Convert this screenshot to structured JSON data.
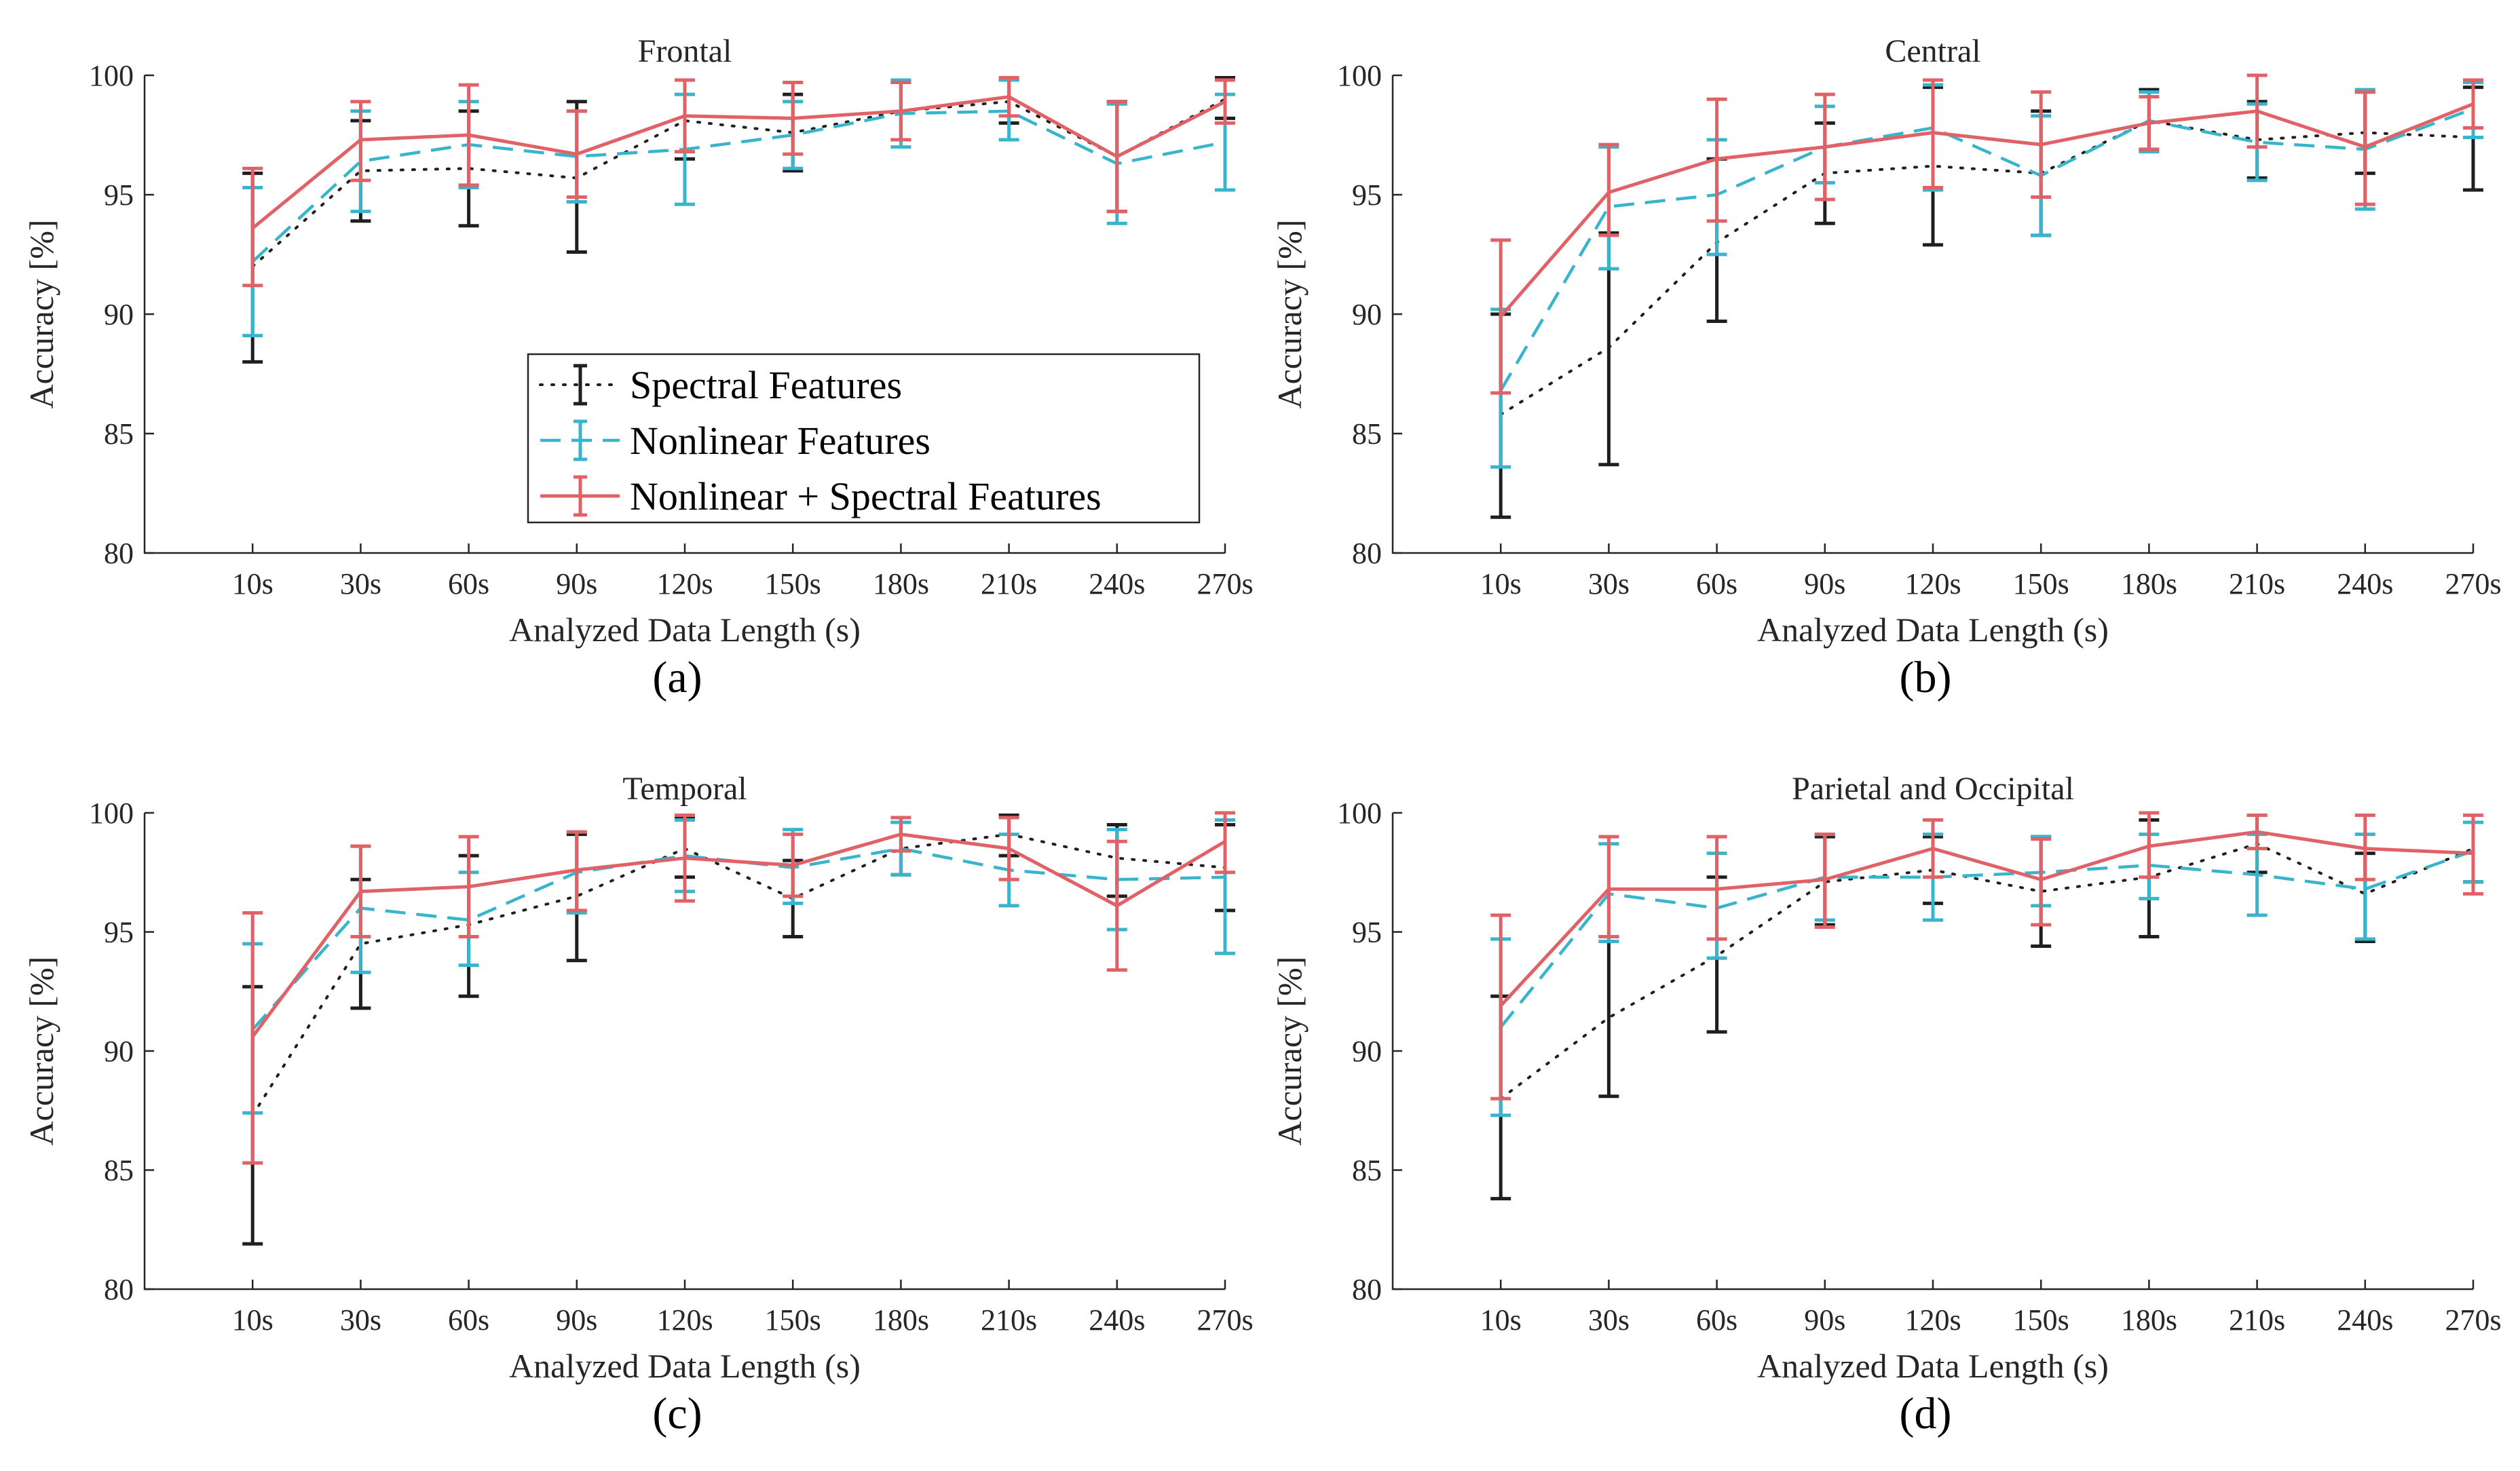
{
  "chart_data": [
    {
      "type": "line",
      "panel_label": "(a)",
      "title": "Frontal",
      "xlabel": "Analyzed Data Length (s)",
      "ylabel": "Accuracy [%]",
      "ylim": [
        80,
        100
      ],
      "yticks": [
        "80",
        "85",
        "90",
        "95",
        "100"
      ],
      "categories": [
        "10s",
        "30s",
        "60s",
        "90s",
        "120s",
        "150s",
        "180s",
        "210s",
        "240s",
        "270s"
      ],
      "series": [
        {
          "name": "Spectral Features",
          "values": [
            92.0,
            96.0,
            96.1,
            95.7,
            98.1,
            97.6,
            98.5,
            98.9,
            96.6,
            99.0
          ],
          "low": [
            88.0,
            93.9,
            93.7,
            92.6,
            96.5,
            96.0,
            97.3,
            98.0,
            94.3,
            98.2
          ],
          "high": [
            95.9,
            98.1,
            98.5,
            98.9,
            99.8,
            99.2,
            99.7,
            99.8,
            98.9,
            99.9
          ]
        },
        {
          "name": "Nonlinear Features",
          "values": [
            92.2,
            96.4,
            97.1,
            96.6,
            96.9,
            97.5,
            98.4,
            98.5,
            96.3,
            97.2
          ],
          "low": [
            89.1,
            94.3,
            95.3,
            94.7,
            94.6,
            96.1,
            97.0,
            97.3,
            93.8,
            95.2
          ],
          "high": [
            95.3,
            98.5,
            98.9,
            98.5,
            99.2,
            98.9,
            99.8,
            99.8,
            98.8,
            99.2
          ]
        },
        {
          "name": "Nonlinear + Spectral Features",
          "values": [
            93.6,
            97.3,
            97.5,
            96.7,
            98.3,
            98.2,
            98.5,
            99.1,
            96.6,
            98.9
          ],
          "low": [
            91.2,
            95.6,
            95.4,
            94.9,
            96.8,
            96.7,
            97.3,
            98.3,
            94.3,
            98.0
          ],
          "high": [
            96.1,
            98.9,
            99.6,
            98.5,
            99.8,
            99.7,
            99.7,
            99.9,
            98.9,
            99.8
          ]
        }
      ],
      "legend": "inside"
    },
    {
      "type": "line",
      "panel_label": "(b)",
      "title": "Central",
      "xlabel": "Analyzed Data Length (s)",
      "ylabel": "Accuracy [%]",
      "ylim": [
        80,
        100
      ],
      "yticks": [
        "80",
        "85",
        "90",
        "95",
        "100"
      ],
      "categories": [
        "10s",
        "30s",
        "60s",
        "90s",
        "120s",
        "150s",
        "180s",
        "210s",
        "240s",
        "270s"
      ],
      "series": [
        {
          "name": "Spectral Features",
          "values": [
            85.8,
            88.6,
            93.0,
            95.9,
            96.2,
            95.9,
            98.1,
            97.3,
            97.6,
            97.4
          ],
          "low": [
            81.5,
            83.7,
            89.7,
            93.8,
            92.9,
            93.3,
            96.9,
            95.7,
            95.9,
            95.2
          ],
          "high": [
            90.0,
            93.4,
            96.5,
            98.0,
            99.5,
            98.5,
            99.4,
            98.9,
            99.3,
            99.5
          ]
        },
        {
          "name": "Nonlinear Features",
          "values": [
            86.8,
            94.5,
            95.0,
            97.0,
            97.8,
            95.8,
            98.1,
            97.2,
            96.9,
            98.6
          ],
          "low": [
            83.6,
            91.9,
            92.5,
            95.5,
            95.2,
            93.3,
            96.8,
            95.6,
            94.4,
            97.4
          ],
          "high": [
            90.2,
            97.0,
            97.3,
            98.7,
            99.6,
            98.3,
            99.3,
            98.8,
            99.4,
            99.7
          ]
        },
        {
          "name": "Nonlinear + Spectral Features",
          "values": [
            89.9,
            95.1,
            96.5,
            97.0,
            97.6,
            97.1,
            98.0,
            98.5,
            97.0,
            98.8
          ],
          "low": [
            86.7,
            93.3,
            93.9,
            94.8,
            95.3,
            94.9,
            96.9,
            97.0,
            94.6,
            97.8
          ],
          "high": [
            93.1,
            97.1,
            99.0,
            99.2,
            99.8,
            99.3,
            99.1,
            100.0,
            99.3,
            99.8
          ]
        }
      ],
      "legend": "none"
    },
    {
      "type": "line",
      "panel_label": "(c)",
      "title": "Temporal",
      "xlabel": "Analyzed Data Length (s)",
      "ylabel": "Accuracy [%]",
      "ylim": [
        80,
        100
      ],
      "yticks": [
        "80",
        "85",
        "90",
        "95",
        "100"
      ],
      "categories": [
        "10s",
        "30s",
        "60s",
        "90s",
        "120s",
        "150s",
        "180s",
        "210s",
        "240s",
        "270s"
      ],
      "series": [
        {
          "name": "Spectral Features",
          "values": [
            87.3,
            94.5,
            95.3,
            96.5,
            98.5,
            96.4,
            98.5,
            99.1,
            98.1,
            97.7
          ],
          "low": [
            81.9,
            91.8,
            92.3,
            93.8,
            97.3,
            94.8,
            97.4,
            98.2,
            96.5,
            95.9
          ],
          "high": [
            92.7,
            97.2,
            98.2,
            99.1,
            99.8,
            98.0,
            99.6,
            99.9,
            99.5,
            99.5
          ]
        },
        {
          "name": "Nonlinear Features",
          "values": [
            90.9,
            96.0,
            95.5,
            97.5,
            98.2,
            97.7,
            98.5,
            97.6,
            97.2,
            97.3
          ],
          "low": [
            87.4,
            93.3,
            93.6,
            95.8,
            96.7,
            96.2,
            97.4,
            96.1,
            95.1,
            94.1
          ],
          "high": [
            94.5,
            98.6,
            97.5,
            99.2,
            99.7,
            99.3,
            99.6,
            99.1,
            99.3,
            99.7
          ]
        },
        {
          "name": "Nonlinear + Spectral Features",
          "values": [
            90.6,
            96.7,
            96.9,
            97.6,
            98.1,
            97.8,
            99.1,
            98.5,
            96.1,
            98.8
          ],
          "low": [
            85.3,
            94.8,
            94.8,
            95.9,
            96.3,
            96.5,
            98.4,
            97.2,
            93.4,
            97.5
          ],
          "high": [
            95.8,
            98.6,
            99.0,
            99.2,
            99.9,
            99.1,
            99.8,
            99.8,
            98.8,
            100.0
          ]
        }
      ],
      "legend": "none"
    },
    {
      "type": "line",
      "panel_label": "(d)",
      "title": "Parietal and Occipital",
      "xlabel": "Analyzed Data Length (s)",
      "ylabel": "Accuracy [%]",
      "ylim": [
        80,
        100
      ],
      "yticks": [
        "80",
        "85",
        "90",
        "95",
        "100"
      ],
      "categories": [
        "10s",
        "30s",
        "60s",
        "90s",
        "120s",
        "150s",
        "180s",
        "210s",
        "240s",
        "270s"
      ],
      "series": [
        {
          "name": "Spectral Features",
          "values": [
            88.0,
            91.4,
            94.0,
            97.1,
            97.6,
            96.7,
            97.3,
            98.7,
            96.6,
            98.5
          ],
          "low": [
            83.8,
            88.1,
            90.8,
            95.3,
            96.2,
            94.4,
            94.8,
            97.5,
            94.6,
            97.1
          ],
          "high": [
            92.3,
            94.8,
            97.3,
            99.0,
            99.0,
            99.0,
            99.7,
            99.9,
            98.3,
            99.6
          ]
        },
        {
          "name": "Nonlinear Features",
          "values": [
            91.0,
            96.6,
            96.0,
            97.3,
            97.3,
            97.5,
            97.8,
            97.4,
            96.8,
            98.4
          ],
          "low": [
            87.3,
            94.6,
            93.9,
            95.5,
            95.5,
            96.1,
            96.4,
            95.7,
            94.7,
            97.1
          ],
          "high": [
            94.7,
            98.7,
            98.3,
            99.1,
            99.1,
            99.0,
            99.1,
            99.1,
            99.1,
            99.6
          ]
        },
        {
          "name": "Nonlinear + Spectral Features",
          "values": [
            91.9,
            96.8,
            96.8,
            97.2,
            98.5,
            97.2,
            98.6,
            99.2,
            98.5,
            98.3
          ],
          "low": [
            88.0,
            94.8,
            94.7,
            95.2,
            97.3,
            95.3,
            97.3,
            98.5,
            97.2,
            96.6
          ],
          "high": [
            95.7,
            99.0,
            99.0,
            99.1,
            99.7,
            98.9,
            100.0,
            99.9,
            99.9,
            99.9
          ]
        }
      ],
      "legend": "none"
    }
  ],
  "colors": {
    "spectral": "#1f1f1f",
    "nonlinear": "#38b4cc",
    "combined": "#e06266",
    "axis": "#262626"
  }
}
